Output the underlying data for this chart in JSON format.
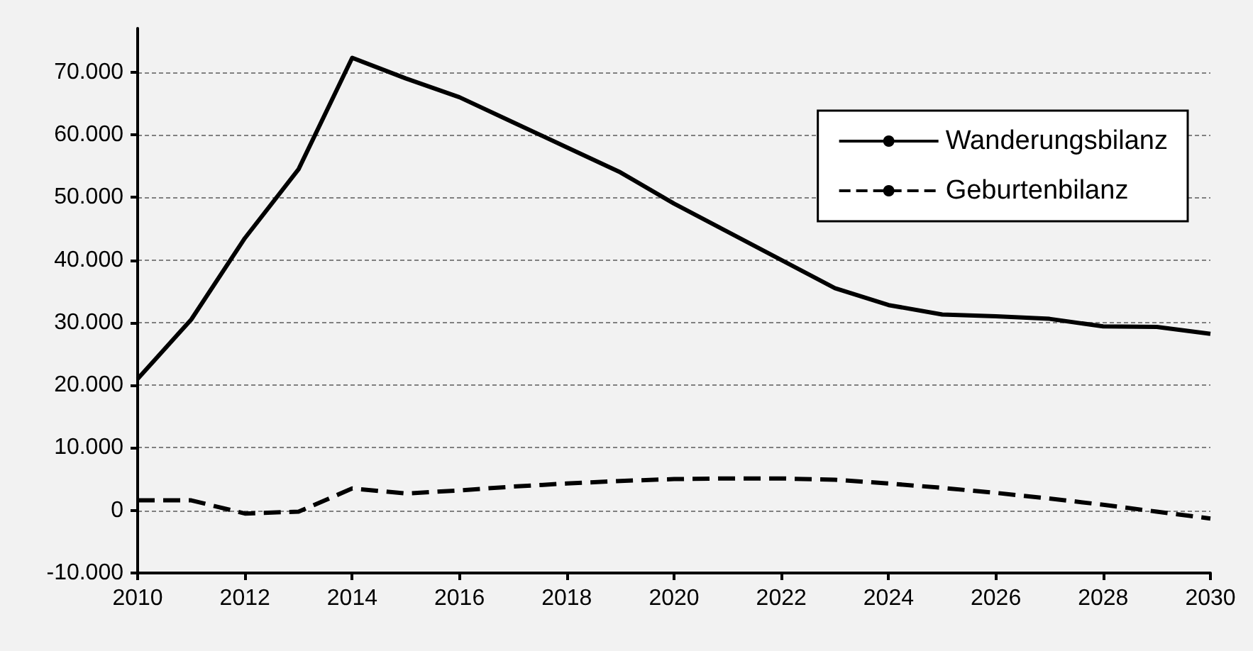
{
  "chart_data": {
    "type": "line",
    "x": [
      2010,
      2011,
      2012,
      2013,
      2014,
      2015,
      2016,
      2017,
      2018,
      2019,
      2020,
      2021,
      2022,
      2023,
      2024,
      2025,
      2026,
      2027,
      2028,
      2029,
      2030
    ],
    "series": [
      {
        "name": "Wanderungsbilanz",
        "color": "#000000",
        "line_style": "solid",
        "values": [
          21000,
          30500,
          43500,
          54500,
          72300,
          69000,
          66000,
          62000,
          58000,
          54000,
          49000,
          44500,
          40000,
          35500,
          32800,
          31300,
          31000,
          30600,
          29400,
          29300,
          28200
        ]
      },
      {
        "name": "Geburtenbilanz",
        "color": "#000000",
        "line_style": "dashed",
        "values": [
          1600,
          1600,
          -500,
          -200,
          3500,
          2700,
          3200,
          3800,
          4300,
          4700,
          5000,
          5100,
          5100,
          4900,
          4300,
          3600,
          2800,
          1900,
          900,
          -200,
          -1300
        ]
      }
    ],
    "xlim": [
      2010,
      2030
    ],
    "xticks": [
      2010,
      2012,
      2014,
      2016,
      2018,
      2020,
      2022,
      2024,
      2026,
      2028,
      2030
    ],
    "ylim": [
      -10000,
      77000
    ],
    "yticks": [
      {
        "value": -10000,
        "label": "-10.000"
      },
      {
        "value": 0,
        "label": "0"
      },
      {
        "value": 10000,
        "label": "10.000"
      },
      {
        "value": 20000,
        "label": "20.000"
      },
      {
        "value": 30000,
        "label": "30.000"
      },
      {
        "value": 40000,
        "label": "40.000"
      },
      {
        "value": 50000,
        "label": "50.000"
      },
      {
        "value": 60000,
        "label": "60.000"
      },
      {
        "value": 70000,
        "label": "70.000"
      }
    ],
    "grid": "y",
    "legend": "top right",
    "marker": "none"
  }
}
